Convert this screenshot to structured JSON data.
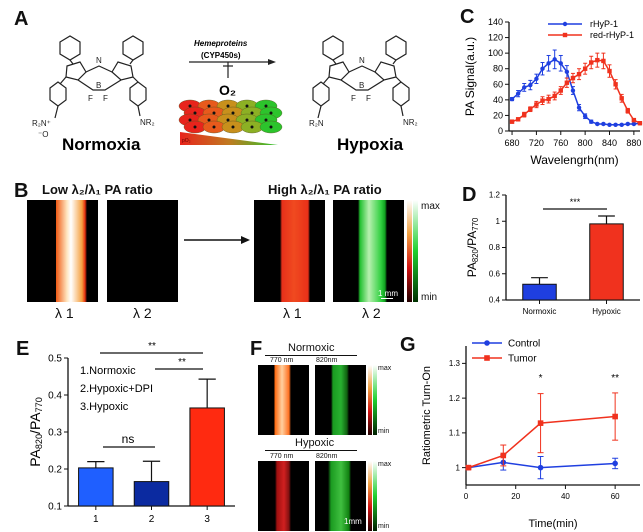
{
  "panel_labels": [
    "A",
    "B",
    "C",
    "D",
    "E",
    "F",
    "G"
  ],
  "panelA": {
    "left_label": "Normoxia",
    "right_label": "Hypoxia",
    "arrow_top": "Hemeproteins",
    "arrow_sub": "(CYP450s)",
    "inhibitor": "O₂",
    "gradient_label": "pO₂",
    "atoms": {
      "N": "N",
      "B": "B",
      "F": "F",
      "NR2": "NR₂",
      "R2N": "R₂N",
      "R2Nplus": "R₂N⁺",
      "Ominus": "⁻O"
    }
  },
  "panelB": {
    "left_title": "Low λ₂/λ₁ PA ratio",
    "right_title": "High λ₂/λ₁ PA ratio",
    "lambda1": "λ 1",
    "lambda2": "λ 2",
    "scale_bar": "1 mm",
    "colorbar_max": "max",
    "colorbar_min": "min"
  },
  "panelF": {
    "normoxic": "Normoxic",
    "hypoxic": "Hypoxic",
    "wl1": "770 nm",
    "wl2": "820nm",
    "scale_bar": "1mm",
    "colorbar_max": "max",
    "colorbar_min": "min"
  },
  "colors": {
    "blue": "#1f3fe0",
    "red": "#f0321e",
    "darkblue": "#0b2aa0"
  },
  "chart_data": [
    {
      "id": "C",
      "type": "line",
      "xlabel": "Wavelengrh(nm)",
      "ylabel": "PA Signal(a.u.)",
      "xlim": [
        675,
        895
      ],
      "ylim": [
        0,
        140
      ],
      "xticks": [
        680,
        720,
        760,
        800,
        840,
        880
      ],
      "yticks": [
        0,
        20,
        40,
        60,
        80,
        100,
        120,
        140
      ],
      "legend": "top-left",
      "x": [
        680,
        690,
        700,
        710,
        720,
        730,
        740,
        750,
        760,
        770,
        780,
        790,
        800,
        810,
        820,
        830,
        840,
        850,
        860,
        870,
        880,
        890
      ],
      "series": [
        {
          "name": "rHyP-1",
          "color": "#1f3fe0",
          "marker": "circle",
          "values": [
            41,
            48,
            56,
            59,
            67,
            80,
            87,
            92,
            87,
            76,
            52,
            30,
            19,
            12,
            9,
            9,
            8,
            8,
            8,
            9,
            9,
            10
          ],
          "errors": [
            2,
            4,
            5,
            6,
            6,
            8,
            10,
            12,
            10,
            8,
            5,
            4,
            3,
            2,
            1,
            1,
            1,
            1,
            1,
            1,
            1,
            1
          ]
        },
        {
          "name": "red-rHyP-1",
          "color": "#f0321e",
          "marker": "square",
          "values": [
            12,
            15,
            21,
            28,
            34,
            39,
            41,
            45,
            52,
            62,
            68,
            73,
            80,
            88,
            91,
            90,
            77,
            60,
            42,
            26,
            14,
            10
          ],
          "errors": [
            2,
            2,
            3,
            3,
            4,
            5,
            5,
            5,
            5,
            6,
            6,
            7,
            7,
            8,
            9,
            10,
            8,
            6,
            5,
            3,
            2,
            1
          ]
        }
      ]
    },
    {
      "id": "D",
      "type": "bar",
      "ylabel": "PA820/PA770",
      "ylim": [
        0.4,
        1.2
      ],
      "yticks": [
        0.4,
        0.6,
        0.8,
        1.0,
        1.2
      ],
      "categories": [
        "Normoxic",
        "Hypoxic"
      ],
      "values": [
        0.52,
        0.98
      ],
      "errors": [
        0.05,
        0.06
      ],
      "bar_colors": [
        "#1f3fe0",
        "#f0321e"
      ],
      "significance": [
        {
          "from": 0,
          "to": 1,
          "label": "***"
        }
      ]
    },
    {
      "id": "E",
      "type": "bar",
      "ylabel": "PA820/PA770",
      "ylim": [
        0.1,
        0.5
      ],
      "yticks": [
        0.1,
        0.2,
        0.3,
        0.4,
        0.5
      ],
      "categories": [
        "1",
        "2",
        "3"
      ],
      "values": [
        0.203,
        0.166,
        0.365
      ],
      "errors": [
        0.017,
        0.055,
        0.078
      ],
      "bar_colors": [
        "#1f5fff",
        "#0b2aa0",
        "#ff2a10"
      ],
      "legend_items": [
        "1.Normoxic",
        "2.Hypoxic+DPI",
        "3.Hypoxic"
      ],
      "significance": [
        {
          "from": 0,
          "to": 2,
          "label": "**"
        },
        {
          "from": 1,
          "to": 2,
          "label": "**"
        },
        {
          "from": 0,
          "to": 1,
          "label": "ns"
        }
      ]
    },
    {
      "id": "G",
      "type": "line",
      "xlabel": "Time(min)",
      "ylabel": "Ratiometric Turn-On",
      "xlim": [
        0,
        70
      ],
      "ylim": [
        0.95,
        1.35
      ],
      "xticks": [
        0,
        20,
        40,
        60
      ],
      "yticks": [
        1.0,
        1.1,
        1.2,
        1.3
      ],
      "legend": "top-left",
      "x": [
        1,
        15,
        30,
        60
      ],
      "series": [
        {
          "name": "Control",
          "color": "#1f3fe0",
          "marker": "circle",
          "values": [
            1.0,
            1.015,
            1.0,
            1.012
          ],
          "errors": [
            0.004,
            0.022,
            0.032,
            0.015
          ]
        },
        {
          "name": "Tumor",
          "color": "#f0321e",
          "marker": "square",
          "values": [
            1.0,
            1.035,
            1.128,
            1.147
          ],
          "errors": [
            0.004,
            0.03,
            0.085,
            0.068
          ]
        }
      ],
      "annotations": [
        {
          "x": 30,
          "label": "*"
        },
        {
          "x": 60,
          "label": "**"
        }
      ]
    }
  ]
}
